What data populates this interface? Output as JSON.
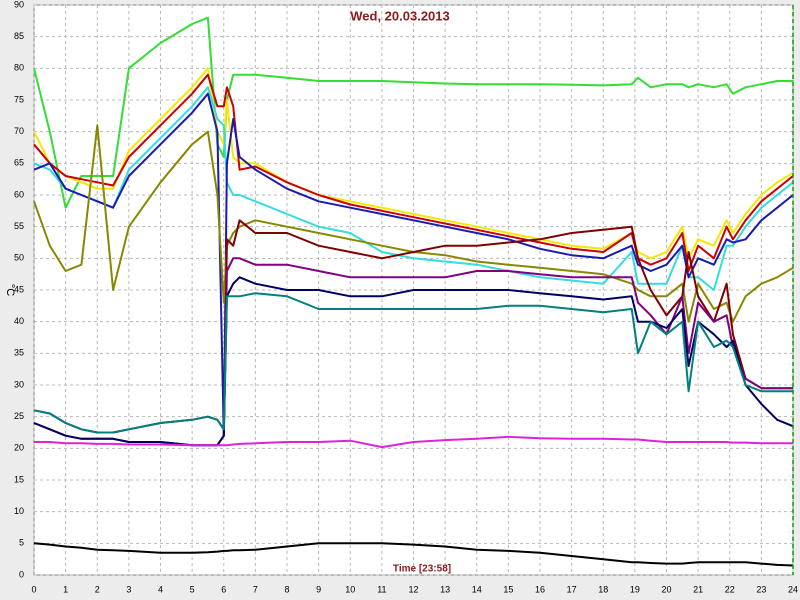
{
  "chart_data": {
    "type": "line",
    "title": "Wed, 20.03.2013",
    "x_label": "Time [23:58]",
    "y_label": "°C",
    "x": [
      0,
      0.5,
      1,
      1.5,
      2,
      2.5,
      3,
      4,
      5,
      5.5,
      5.8,
      6,
      6.1,
      6.3,
      6.5,
      7,
      8,
      9,
      10,
      11,
      12,
      13,
      14,
      15,
      16,
      17,
      18,
      18.9,
      19.1,
      19.5,
      20,
      20.5,
      20.7,
      21,
      21.5,
      21.9,
      22.1,
      22.5,
      23,
      23.5,
      24
    ],
    "xlim": [
      0,
      24
    ],
    "xticks": [
      0,
      1,
      2,
      3,
      4,
      5,
      6,
      7,
      8,
      9,
      10,
      11,
      12,
      13,
      14,
      15,
      16,
      17,
      18,
      19,
      20,
      21,
      22,
      23,
      24
    ],
    "ylim": [
      0,
      90
    ],
    "yticks": [
      0,
      5,
      10,
      15,
      20,
      25,
      30,
      35,
      40,
      45,
      50,
      55,
      60,
      65,
      70,
      75,
      80,
      85,
      90
    ],
    "grid": true,
    "series": [
      {
        "color": "#33dd33",
        "values": [
          80,
          70,
          58,
          63,
          63,
          63,
          80,
          84,
          87,
          88,
          68,
          66,
          75,
          79,
          79,
          79,
          78.5,
          78,
          78,
          78,
          77.8,
          77.6,
          77.5,
          77.5,
          77.5,
          77.4,
          77.3,
          77.5,
          78.5,
          77,
          77.5,
          77.5,
          77,
          77.5,
          77,
          77.5,
          76,
          77,
          77.5,
          78,
          78
        ]
      },
      {
        "color": "#f5e800",
        "values": [
          70,
          65,
          63,
          62,
          61,
          61,
          67,
          72,
          77,
          80,
          70,
          68,
          75,
          66,
          65,
          65,
          62,
          60,
          59,
          58,
          57,
          56,
          55,
          54,
          53,
          52,
          51.5,
          54,
          51,
          50,
          51,
          55,
          50,
          53,
          52,
          56,
          54,
          57,
          60,
          62,
          63.5
        ]
      },
      {
        "color": "#cc0000",
        "values": [
          68,
          65,
          63,
          62.5,
          62,
          61.5,
          66,
          71,
          76,
          79,
          74,
          74,
          77,
          74,
          64,
          64.5,
          62,
          60,
          58.5,
          57.5,
          56.5,
          55.5,
          54.5,
          53.5,
          52.5,
          51.5,
          51,
          54,
          50,
          49,
          50,
          54,
          48,
          52,
          50,
          55,
          53,
          56,
          59,
          61,
          63
        ]
      },
      {
        "color": "#33dddd",
        "values": [
          65,
          64,
          61,
          60,
          59,
          58,
          64,
          69,
          74,
          77,
          72,
          71,
          62,
          60,
          60,
          59,
          57,
          55,
          54,
          51,
          50,
          49.5,
          49,
          48,
          47,
          46.5,
          46,
          51,
          46,
          46,
          46,
          52,
          47,
          47,
          45,
          52,
          52,
          55,
          58,
          60,
          62
        ]
      },
      {
        "color": "#1a1ab0",
        "values": [
          64,
          65,
          61,
          60,
          59,
          58,
          63,
          68,
          73,
          76,
          70,
          22,
          65,
          72,
          66,
          64,
          61,
          59,
          58,
          57,
          56,
          55,
          54,
          53,
          51.5,
          50.5,
          50,
          52,
          49,
          48,
          49,
          52,
          47,
          50,
          49,
          53,
          52.5,
          53,
          56,
          58,
          60
        ]
      },
      {
        "color": "#888800",
        "values": [
          59,
          52,
          48,
          49,
          71,
          45,
          55,
          62,
          68,
          70,
          60,
          43,
          52,
          54,
          55,
          56,
          55,
          54,
          53,
          52,
          51,
          50.5,
          49.5,
          49,
          48.5,
          48,
          47.5,
          46,
          45,
          44,
          44,
          46,
          40,
          46,
          42,
          43,
          40,
          44,
          46,
          47,
          48.5
        ]
      },
      {
        "color": "#800000",
        "values": [
          26,
          25.5,
          24,
          23,
          22.5,
          22.5,
          23,
          24,
          24.5,
          25,
          24.5,
          23,
          53,
          52,
          56,
          54,
          54,
          52,
          51,
          50,
          51,
          52,
          52,
          52.5,
          53,
          54,
          54.5,
          55,
          50,
          45,
          41,
          44,
          51,
          44,
          40,
          46,
          38,
          31,
          29.5,
          29.5,
          29.5
        ]
      },
      {
        "color": "#800080",
        "values": [
          24,
          23,
          22,
          21.5,
          21.5,
          21.5,
          21,
          21,
          20.5,
          20.5,
          20.5,
          22,
          48,
          50,
          50,
          49,
          49,
          48,
          47,
          47,
          47,
          47,
          48,
          48,
          47.5,
          47,
          47,
          47,
          43,
          41,
          38,
          44,
          35,
          43,
          40,
          41,
          36,
          31,
          29.5,
          29.5,
          29.5
        ]
      },
      {
        "color": "#000060",
        "values": [
          24,
          23,
          22,
          21.5,
          21.5,
          21.5,
          21,
          21,
          20.5,
          20.5,
          20.5,
          22,
          44,
          46,
          47,
          46,
          45,
          45,
          44,
          44,
          45,
          45,
          45,
          45,
          44.5,
          44,
          43.5,
          44,
          40,
          40,
          39,
          42,
          33,
          40,
          38,
          36,
          37,
          30,
          27,
          24.5,
          23.5
        ]
      },
      {
        "color": "#008080",
        "values": [
          26,
          25.5,
          24,
          23,
          22.5,
          22.5,
          23,
          24,
          24.5,
          25,
          24.5,
          23,
          44,
          44,
          44,
          44.5,
          44,
          42,
          42,
          42,
          42,
          42,
          42,
          42.5,
          42.5,
          42,
          41.5,
          42,
          35,
          40,
          38,
          40,
          29,
          40,
          36,
          37,
          36,
          30,
          29,
          29,
          29
        ]
      },
      {
        "color": "#dd22dd",
        "values": [
          21,
          21,
          20.8,
          20.8,
          20.7,
          20.7,
          20.6,
          20.6,
          20.5,
          20.5,
          20.5,
          20.5,
          20.5,
          20.6,
          20.7,
          20.8,
          21,
          21,
          21.2,
          20.2,
          21,
          21.3,
          21.5,
          21.8,
          21.6,
          21.5,
          21.5,
          21.4,
          21.4,
          21.2,
          21,
          21,
          21,
          21,
          21,
          21,
          20.9,
          20.9,
          20.8,
          20.8,
          20.8
        ]
      },
      {
        "color": "#000000",
        "values": [
          5,
          4.8,
          4.5,
          4.3,
          4,
          3.9,
          3.8,
          3.5,
          3.5,
          3.6,
          3.7,
          3.8,
          3.8,
          3.9,
          3.9,
          4,
          4.5,
          5,
          5,
          5,
          4.8,
          4.5,
          4,
          3.8,
          3.5,
          3,
          2.5,
          2,
          2,
          1.9,
          1.8,
          1.8,
          1.9,
          2,
          2,
          2,
          2,
          2,
          1.8,
          1.6,
          1.5
        ]
      }
    ]
  }
}
